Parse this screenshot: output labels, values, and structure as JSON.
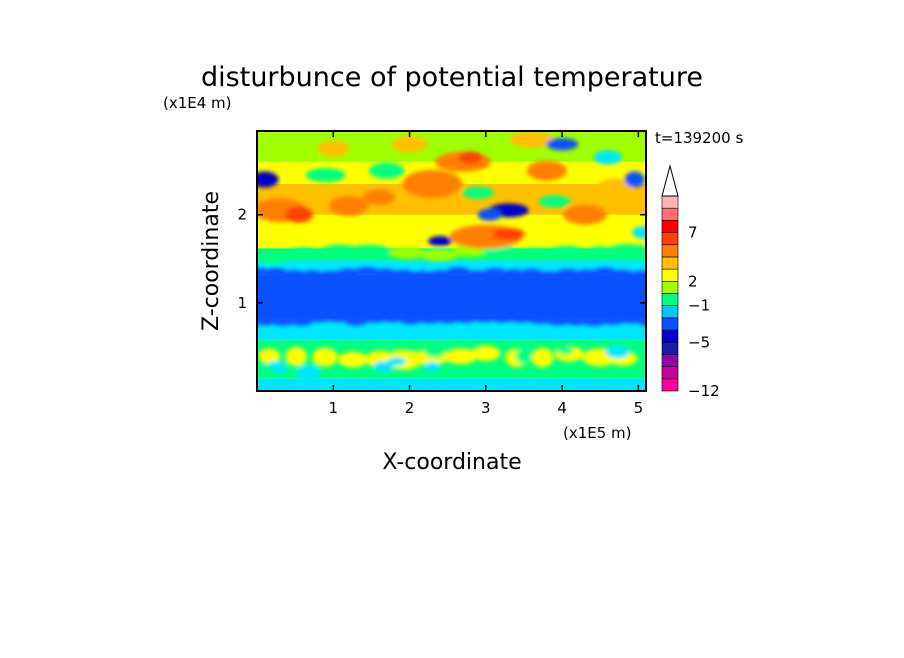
{
  "chart_data": {
    "type": "heatmap",
    "title": "disturbunce of potential temperature",
    "xlabel": "X-coordinate",
    "ylabel": "Z-coordinate",
    "x_unit": "(x1E5 m)",
    "y_unit": "(x1E4 m)",
    "time_label": "t=139200 s",
    "x_ticks": [
      "1",
      "2",
      "3",
      "4",
      "5"
    ],
    "y_ticks": [
      "1",
      "2"
    ],
    "xlim": [
      0,
      5.1
    ],
    "ylim": [
      0,
      2.95
    ],
    "grid": false,
    "colorbar": {
      "tick_labels": [
        "7",
        "2",
        "−1",
        "−5",
        "−12"
      ],
      "colors": [
        "#ff00a0",
        "#c8009b",
        "#8a0aa8",
        "#1a1aa8",
        "#0000c8",
        "#0a50ff",
        "#00c8ff",
        "#00ff80",
        "#a0ff00",
        "#ffff00",
        "#ffc000",
        "#ff8000",
        "#ff4000",
        "#ff0000",
        "#ff6e6e",
        "#ffb4b4",
        "#ffffff"
      ]
    },
    "bands": [
      {
        "z": [
          0.0,
          0.12
        ],
        "dominant": "cyan / green"
      },
      {
        "z": [
          0.12,
          0.55
        ],
        "dominant": "green with yellow cells"
      },
      {
        "z": [
          0.55,
          0.8
        ],
        "dominant": "cyan"
      },
      {
        "z": [
          0.8,
          1.3
        ],
        "dominant": "blue"
      },
      {
        "z": [
          1.3,
          1.55
        ],
        "dominant": "cyan / green"
      },
      {
        "z": [
          1.55,
          2.95
        ],
        "dominant": "yellow / orange with blue and green cells"
      }
    ]
  }
}
